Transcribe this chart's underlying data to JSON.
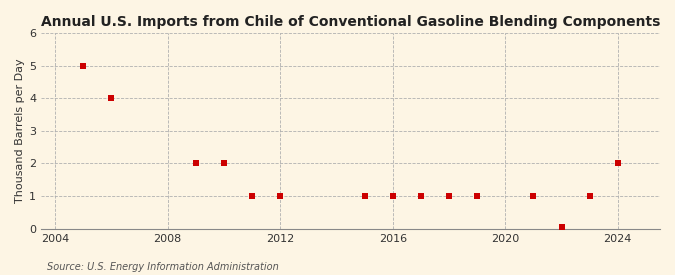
{
  "title": "Annual U.S. Imports from Chile of Conventional Gasoline Blending Components",
  "ylabel": "Thousand Barrels per Day",
  "source": "Source: U.S. Energy Information Administration",
  "background_color": "#fdf5e4",
  "plot_bg_color": "#fdf5e4",
  "years": [
    2005,
    2006,
    2009,
    2010,
    2011,
    2012,
    2015,
    2016,
    2017,
    2018,
    2019,
    2021,
    2022,
    2023,
    2024
  ],
  "values": [
    5,
    4,
    2,
    2,
    1,
    1,
    1,
    1,
    1,
    1,
    1,
    1,
    0.04,
    1,
    2
  ],
  "xlim": [
    2003.5,
    2025.5
  ],
  "ylim": [
    0,
    6
  ],
  "xticks": [
    2004,
    2008,
    2012,
    2016,
    2020,
    2024
  ],
  "yticks": [
    0,
    1,
    2,
    3,
    4,
    5,
    6
  ],
  "marker_color": "#cc0000",
  "marker_size": 4,
  "grid_color": "#b0b0b0",
  "vgrid_positions": [
    2004,
    2008,
    2012,
    2016,
    2020,
    2024
  ],
  "title_fontsize": 10,
  "label_fontsize": 8,
  "tick_fontsize": 8,
  "source_fontsize": 7
}
